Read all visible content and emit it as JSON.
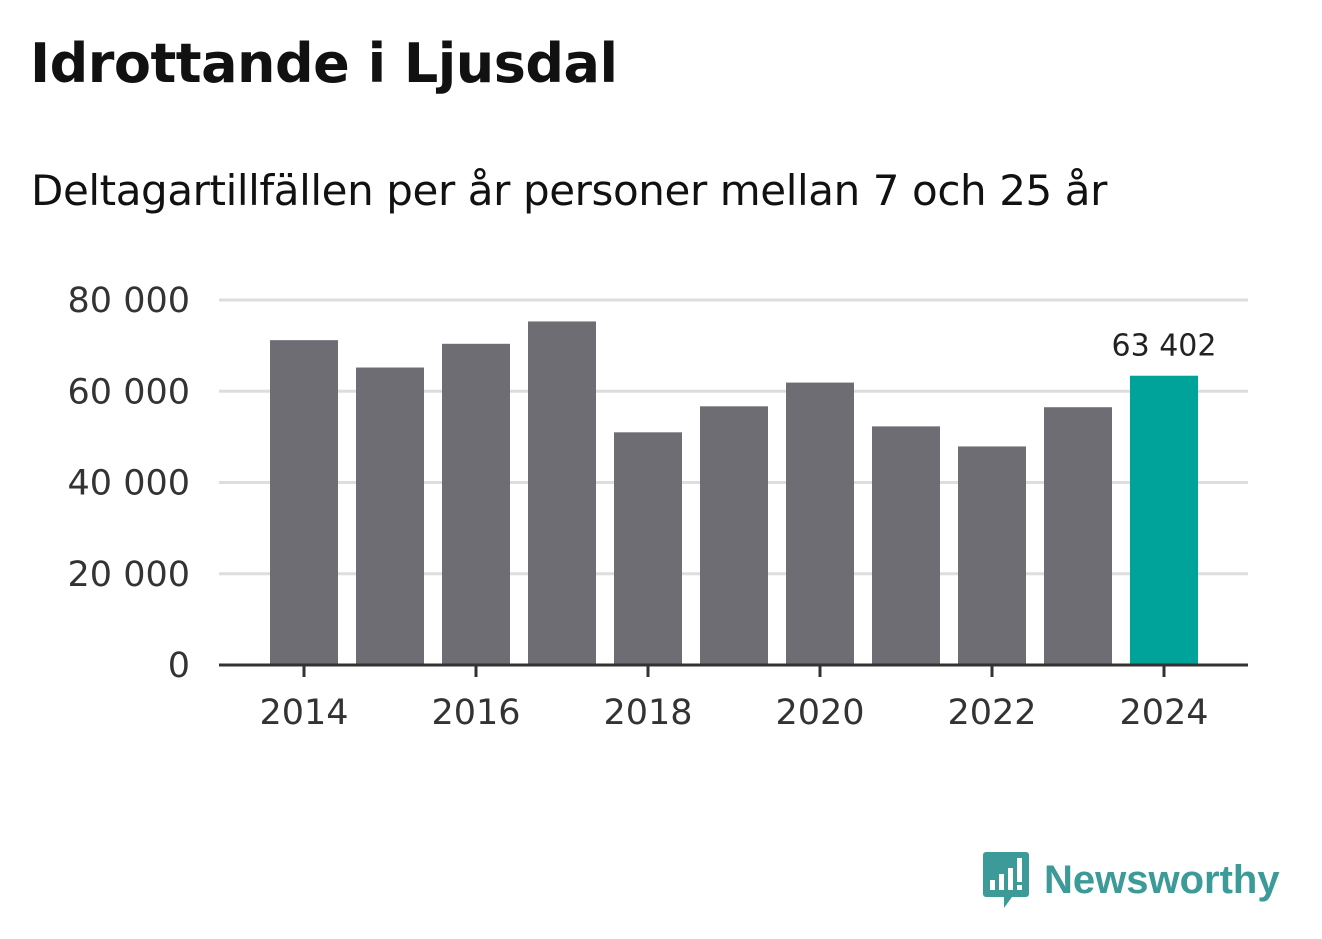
{
  "chart_data": {
    "type": "bar",
    "title": "Idrottande i Ljusdal",
    "subtitle": "Deltagartillfällen per år personer mellan 7 och 25 år",
    "xlabel": "",
    "ylabel": "",
    "categories": [
      "2014",
      "2015",
      "2016",
      "2017",
      "2018",
      "2019",
      "2020",
      "2021",
      "2022",
      "2023",
      "2024"
    ],
    "x_tick_labels": [
      "2014",
      "2016",
      "2018",
      "2020",
      "2022",
      "2024"
    ],
    "values": [
      71200,
      65200,
      70400,
      75300,
      51000,
      56700,
      61900,
      52300,
      47900,
      56500,
      63402
    ],
    "ylim": [
      0,
      80000
    ],
    "y_ticks": [
      0,
      20000,
      40000,
      60000,
      80000
    ],
    "y_tick_labels": [
      "0",
      "20 000",
      "40 000",
      "60 000",
      "80 000"
    ],
    "grid": true,
    "highlight_index": 10,
    "highlight_label": "63 402",
    "bar_color": "#6e6d73",
    "highlight_color": "#00a399",
    "grid_color": "#dddddd",
    "axis_color": "#333333"
  },
  "brand": {
    "name": "Newsworthy",
    "color": "#3c9a98",
    "icon": "newsworthy-logo-icon"
  }
}
